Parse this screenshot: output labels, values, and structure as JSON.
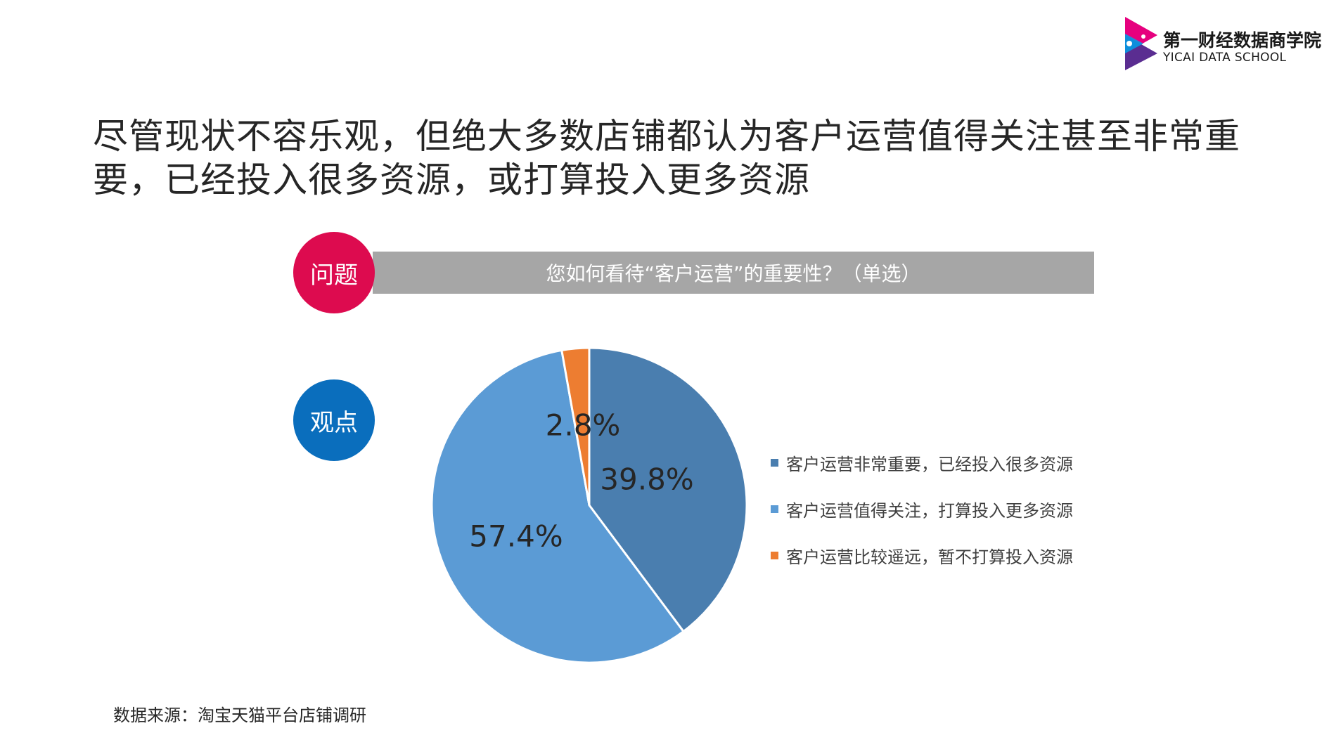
{
  "header": {
    "logo_cn": "第一财经数据商学院",
    "logo_en": "YICAI DATA SCHOOL"
  },
  "title": "尽管现状不容乐观，但绝大多数店铺都认为客户运营值得关注甚至非常重要，已经投入很多资源，或打算投入更多资源",
  "question": {
    "badge": "问题",
    "text": "您如何看待“客户运营”的重要性？（单选）"
  },
  "viewpoint": {
    "badge": "观点"
  },
  "source": "数据来源：淘宝天猫平台店铺调研",
  "chart_data": {
    "type": "pie",
    "categories": [
      "客户运营非常重要，已经投入很多资源",
      "客户运营值得关注，打算投入更多资源",
      "客户运营比较遥远，暂不打算投入资源"
    ],
    "values": [
      39.8,
      57.4,
      2.8
    ],
    "labels": [
      "39.8%",
      "57.4%",
      "2.8%"
    ],
    "colors": [
      "#4a7eaf",
      "#5b9bd5",
      "#ed7d31"
    ],
    "legend_position": "right"
  },
  "colors": {
    "question_badge": "#dd0b4f",
    "viewpoint_badge": "#0a6ebd",
    "question_bar": "#a6a6a6"
  }
}
